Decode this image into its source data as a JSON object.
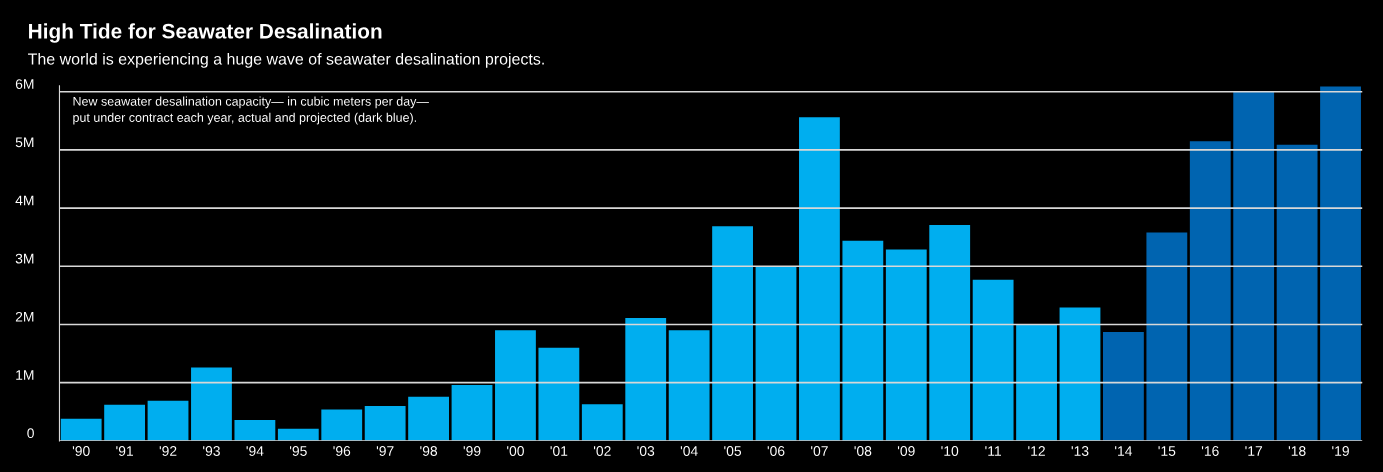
{
  "chart_data": {
    "type": "bar",
    "title": "High Tide for Seawater Desalination",
    "subtitle": "The world is experiencing a huge wave of seawater desalination projects.",
    "annotations": [
      "New seawater desalination capacity— in cubic meters per day—\nput under contract each year, actual and projected (dark blue)."
    ],
    "categories": [
      "'90",
      "'91",
      "'92",
      "'93",
      "'94",
      "'95",
      "'96",
      "'97",
      "'98",
      "'99",
      "'00",
      "'01",
      "'02",
      "'03",
      "'04",
      "'05",
      "'06",
      "'07",
      "'08",
      "'09",
      "'10",
      "'11",
      "'12",
      "'13",
      "'14",
      "'15",
      "'16",
      "'17",
      "'18",
      "'19"
    ],
    "values": [
      0.38,
      0.62,
      0.69,
      1.26,
      0.36,
      0.21,
      0.54,
      0.6,
      0.76,
      0.96,
      1.9,
      1.6,
      0.63,
      2.11,
      1.9,
      3.69,
      3.0,
      5.56,
      3.44,
      3.29,
      3.71,
      2.77,
      2.0,
      2.29,
      1.87,
      3.58,
      5.15,
      6.0,
      5.09,
      6.09
    ],
    "colors": [
      "#00aeef",
      "#00aeef",
      "#00aeef",
      "#00aeef",
      "#00aeef",
      "#00aeef",
      "#00aeef",
      "#00aeef",
      "#00aeef",
      "#00aeef",
      "#00aeef",
      "#00aeef",
      "#00aeef",
      "#00aeef",
      "#00aeef",
      "#00aeef",
      "#00aeef",
      "#00aeef",
      "#00aeef",
      "#00aeef",
      "#00aeef",
      "#00aeef",
      "#00aeef",
      "#00aeef",
      "#0064b0",
      "#0064b0",
      "#0064b0",
      "#0064b0",
      "#0064b0",
      "#0064b0"
    ],
    "ylim": [
      0,
      6.1
    ],
    "yticks": [
      {
        "value": 0,
        "label": "0"
      },
      {
        "value": 1,
        "label": "1M"
      },
      {
        "value": 2,
        "label": "2M"
      },
      {
        "value": 3,
        "label": "3M"
      },
      {
        "value": 4,
        "label": "4M"
      },
      {
        "value": 5,
        "label": "5M"
      },
      {
        "value": 6,
        "label": "6M"
      }
    ],
    "grid": "y"
  }
}
